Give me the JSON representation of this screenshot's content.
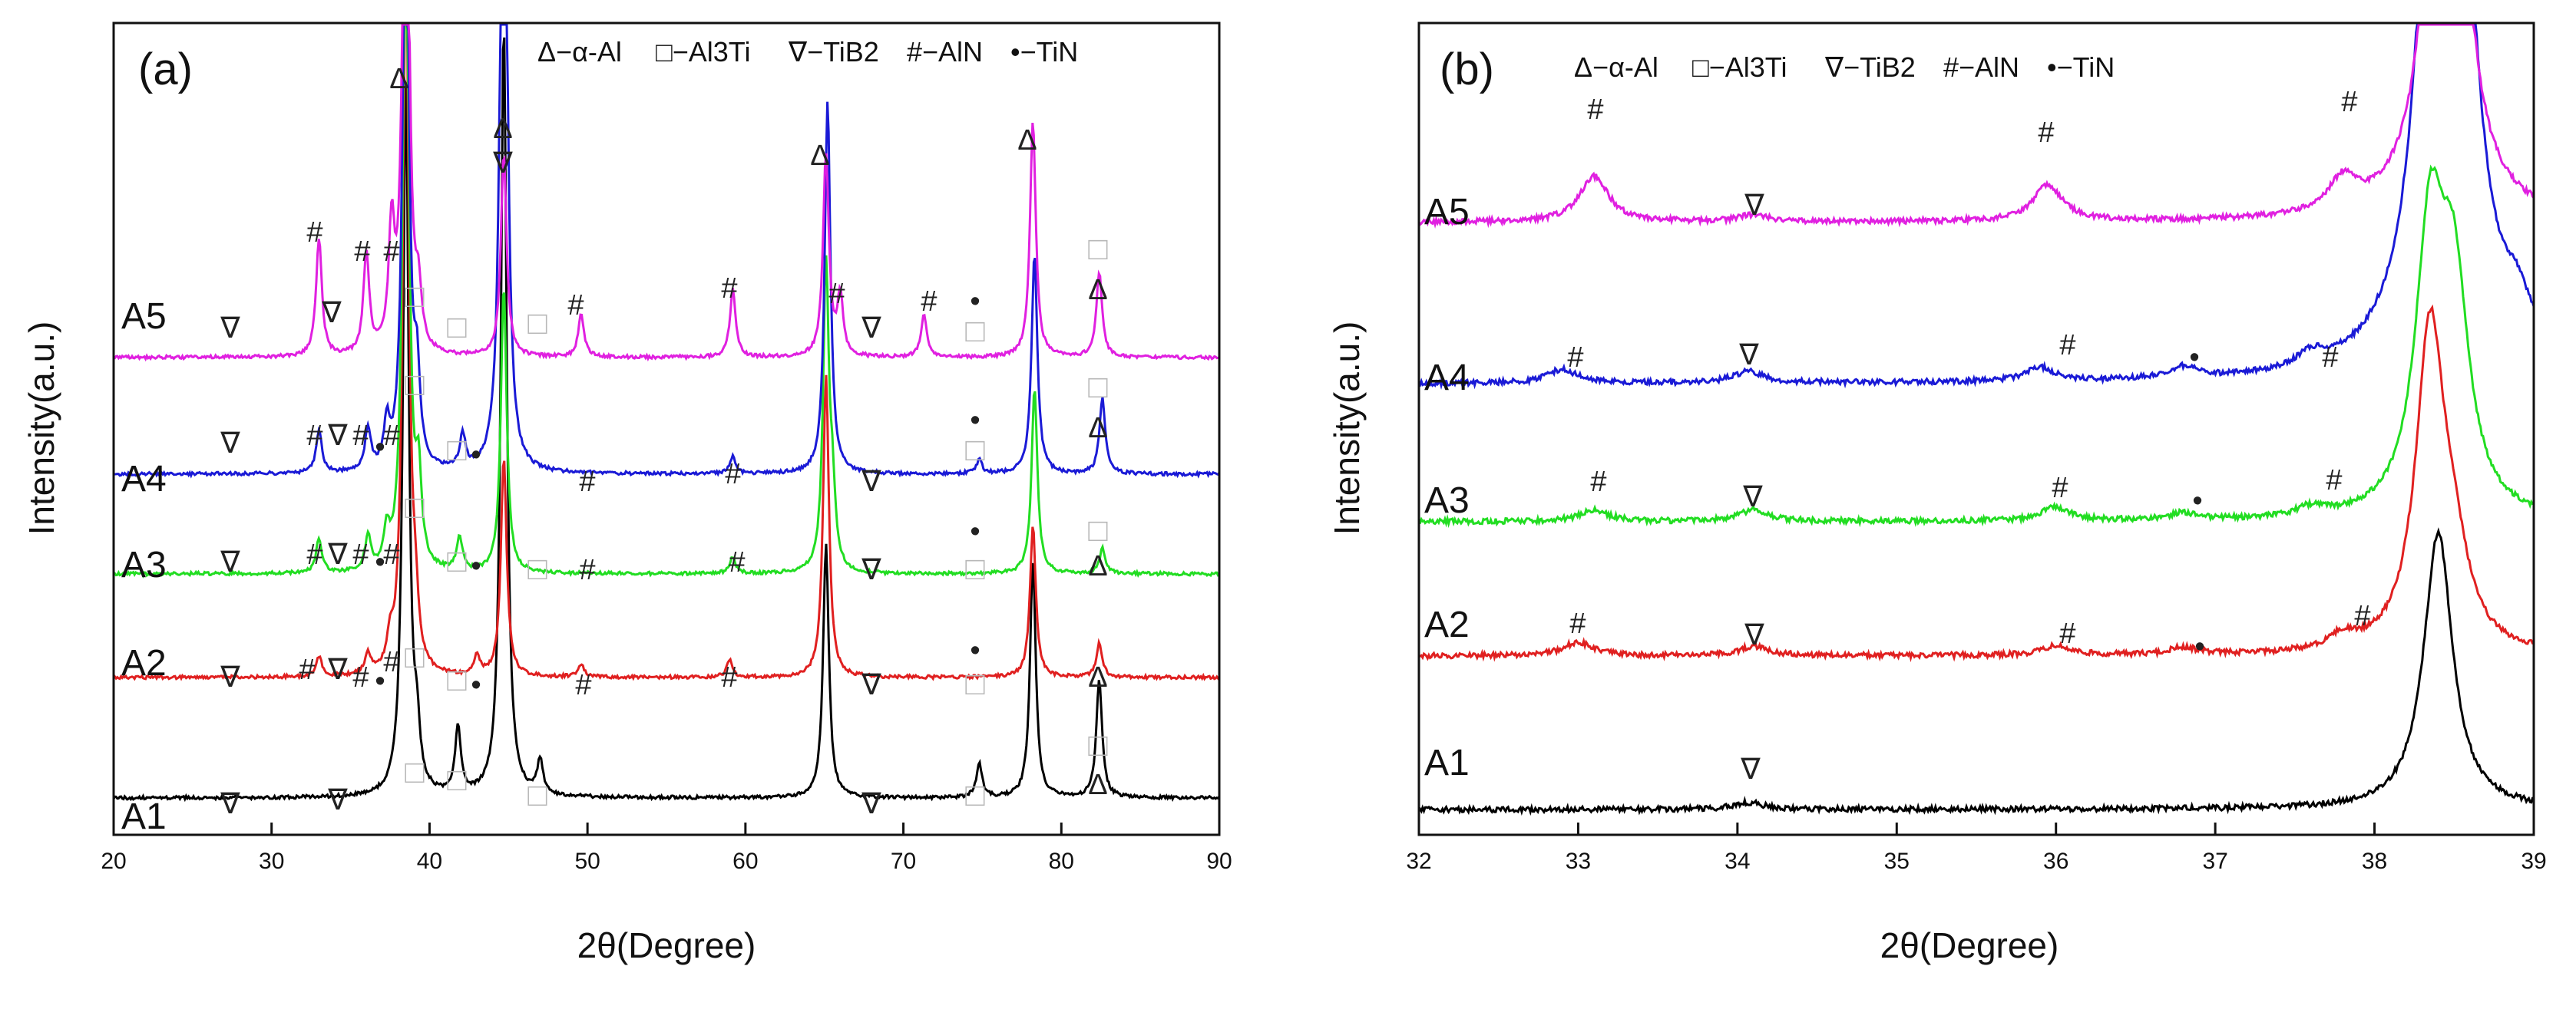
{
  "chart_data": [
    {
      "panel": "(a)",
      "type": "line",
      "xlabel": "2θ(Degree)",
      "ylabel": "Intensity(a.u.)",
      "xlim": [
        20,
        90
      ],
      "xticks": [
        20,
        30,
        40,
        50,
        60,
        70,
        80,
        90
      ],
      "legend": [
        "Δ−α-Al",
        "□−Al3Ti",
        "∇−TiB2",
        "#−AlN",
        "•−TiN"
      ],
      "legend_position": "top",
      "grid": false,
      "series": [
        {
          "name": "A1",
          "color": "#000000",
          "baseline": 0,
          "peaks": [
            [
              38.5,
              42
            ],
            [
              39.2,
              3
            ],
            [
              41.8,
              4
            ],
            [
              44.7,
              46
            ],
            [
              47.0,
              2
            ],
            [
              65.1,
              15
            ],
            [
              78.2,
              14
            ],
            [
              82.4,
              7
            ],
            [
              74.8,
              2
            ]
          ]
        },
        {
          "name": "A2",
          "color": "#e02020",
          "baseline": 1,
          "peaks": [
            [
              33.0,
              1.2
            ],
            [
              36.1,
              1.2
            ],
            [
              37.5,
              1.5
            ],
            [
              38.5,
              45
            ],
            [
              39.1,
              3
            ],
            [
              44.7,
              13
            ],
            [
              43.0,
              1.2
            ],
            [
              65.1,
              18
            ],
            [
              78.2,
              9
            ],
            [
              82.4,
              2
            ],
            [
              59.0,
              1
            ],
            [
              49.6,
              0.8
            ]
          ]
        },
        {
          "name": "A3",
          "color": "#22dd22",
          "baseline": 1,
          "peaks": [
            [
              33.0,
              2
            ],
            [
              36.1,
              2
            ],
            [
              37.3,
              2
            ],
            [
              38.5,
              43
            ],
            [
              39.3,
              5
            ],
            [
              44.7,
              17
            ],
            [
              41.9,
              2
            ],
            [
              65.1,
              18
            ],
            [
              65.5,
              4
            ],
            [
              78.3,
              11
            ],
            [
              82.6,
              1.5
            ],
            [
              59.2,
              1
            ]
          ]
        },
        {
          "name": "A4",
          "color": "#1a1ad6",
          "baseline": 1,
          "peaks": [
            [
              33.0,
              2.5
            ],
            [
              36.1,
              2.5
            ],
            [
              37.3,
              2.5
            ],
            [
              38.5,
              40
            ],
            [
              39.2,
              5
            ],
            [
              44.7,
              55
            ],
            [
              42.1,
              2
            ],
            [
              65.2,
              22
            ],
            [
              78.3,
              13
            ],
            [
              82.6,
              4.5
            ],
            [
              59.2,
              1
            ],
            [
              74.8,
              0.8
            ]
          ]
        },
        {
          "name": "A5",
          "color": "#e020e0",
          "baseline": 1,
          "peaks": [
            [
              33.0,
              7
            ],
            [
              36.0,
              6
            ],
            [
              37.6,
              7
            ],
            [
              38.5,
              40
            ],
            [
              39.3,
              3
            ],
            [
              44.7,
              12
            ],
            [
              49.6,
              2.5
            ],
            [
              59.2,
              4
            ],
            [
              65.1,
              12
            ],
            [
              66.0,
              3.5
            ],
            [
              71.3,
              2.5
            ],
            [
              78.2,
              14
            ],
            [
              82.4,
              5
            ]
          ]
        }
      ]
    },
    {
      "panel": "(b)",
      "type": "line",
      "xlabel": "2θ(Degree)",
      "ylabel": "Intensity(a.u.)",
      "xlim": [
        32,
        39
      ],
      "xticks": [
        32,
        33,
        34,
        35,
        36,
        37,
        38,
        39
      ],
      "legend": [
        "Δ−α-Al",
        "□−Al3Ti",
        "∇−TiB2",
        "#−AlN",
        "•−TiN"
      ],
      "legend_position": "top",
      "grid": false,
      "series": [
        {
          "name": "A1",
          "color": "#000000",
          "baseline": 0,
          "peaks": [
            [
              34.07,
              0.3
            ],
            [
              38.4,
              12
            ]
          ]
        },
        {
          "name": "A2",
          "color": "#e02020",
          "baseline": 0.5,
          "peaks": [
            [
              33.0,
              0.6
            ],
            [
              34.1,
              0.4
            ],
            [
              36.0,
              0.4
            ],
            [
              36.8,
              0.3
            ],
            [
              37.8,
              0.6
            ],
            [
              38.35,
              14
            ],
            [
              38.5,
              3
            ]
          ]
        },
        {
          "name": "A3",
          "color": "#22dd22",
          "baseline": 0.5,
          "peaks": [
            [
              33.1,
              0.5
            ],
            [
              34.1,
              0.5
            ],
            [
              36.0,
              0.6
            ],
            [
              36.8,
              0.3
            ],
            [
              37.6,
              0.4
            ],
            [
              38.35,
              12
            ],
            [
              38.5,
              9
            ]
          ]
        },
        {
          "name": "A4",
          "color": "#1a1ad6",
          "baseline": 0.5,
          "peaks": [
            [
              32.9,
              0.6
            ],
            [
              34.07,
              0.5
            ],
            [
              35.9,
              0.6
            ],
            [
              36.8,
              0.5
            ],
            [
              37.6,
              0.6
            ],
            [
              38.45,
              60
            ],
            [
              38.9,
              1.8
            ]
          ]
        },
        {
          "name": "A5",
          "color": "#e020e0",
          "baseline": 0.5,
          "peaks": [
            [
              33.1,
              2.0
            ],
            [
              34.1,
              0.3
            ],
            [
              35.95,
              1.6
            ],
            [
              37.8,
              1.4
            ],
            [
              38.45,
              30
            ]
          ]
        }
      ]
    }
  ]
}
